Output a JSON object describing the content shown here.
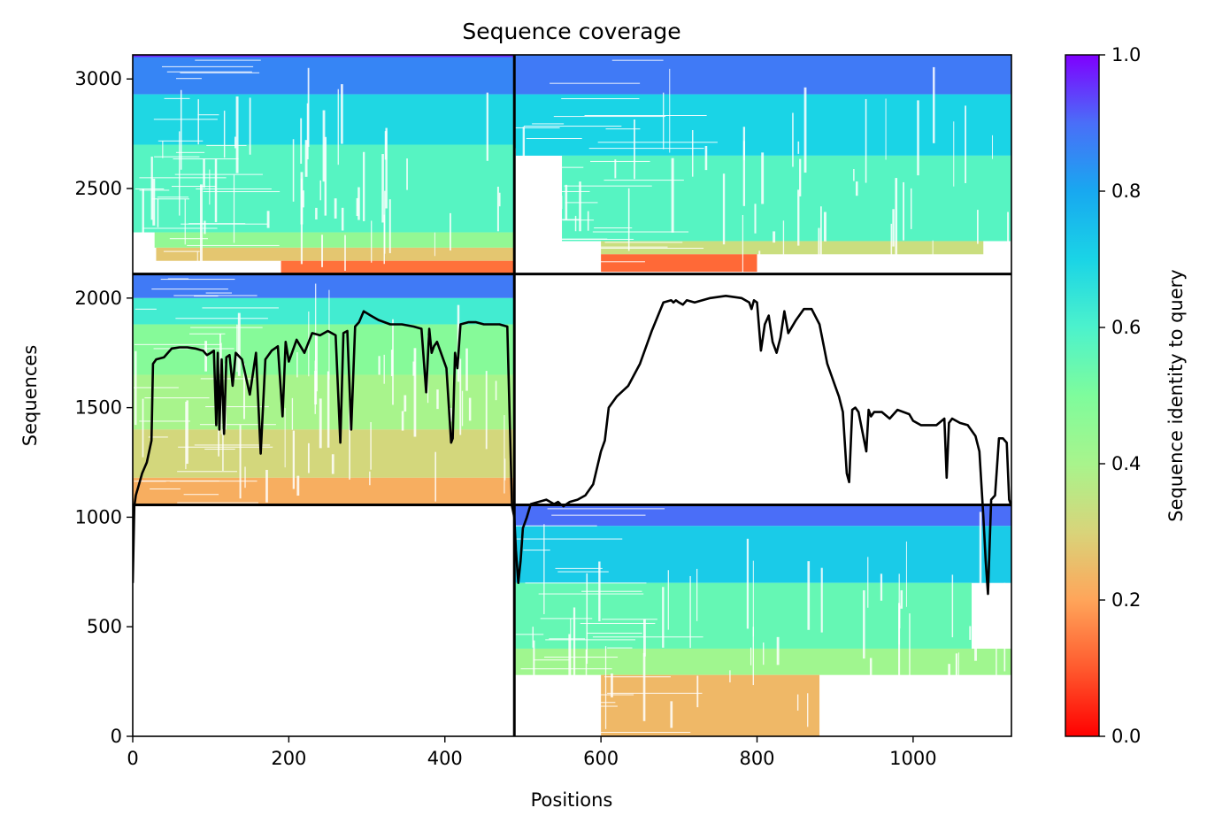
{
  "chart_data": {
    "type": "heatmap",
    "title": "Sequence coverage",
    "xlabel": "Positions",
    "ylabel": "Sequences",
    "xlim": [
      0,
      1126
    ],
    "ylim": [
      0,
      3110
    ],
    "xticks": [
      0,
      200,
      400,
      600,
      800,
      1000
    ],
    "yticks": [
      0,
      500,
      1000,
      1500,
      2000,
      2500,
      3000
    ],
    "grid": false,
    "colormap": "rainbow_r",
    "colorbar": {
      "label": "Sequence identity to query",
      "range": [
        0.0,
        1.0
      ],
      "ticks": [
        "0.0",
        "0.2",
        "0.4",
        "0.6",
        "0.8",
        "1.0"
      ]
    },
    "chain_boundaries": {
      "x": 489,
      "y": [
        1056,
        2110
      ]
    },
    "blocks": [
      {
        "name": "upper-left-block",
        "x_range": [
          0,
          489
        ],
        "y_range": [
          2110,
          3110
        ],
        "identity_bands": [
          {
            "y": [
              3100,
              3110
            ],
            "x": [
              0,
              489
            ],
            "identity": 0.97
          },
          {
            "y": [
              2930,
              3100
            ],
            "x": [
              0,
              489
            ],
            "identity": 0.86
          },
          {
            "y": [
              2700,
              2930
            ],
            "x": [
              0,
              489
            ],
            "identity": 0.69
          },
          {
            "y": [
              2300,
              2700
            ],
            "x": [
              0,
              489
            ],
            "identity": 0.58
          },
          {
            "y": [
              2230,
              2300
            ],
            "x": [
              28,
              489
            ],
            "identity": 0.45
          },
          {
            "y": [
              2170,
              2230
            ],
            "x": [
              30,
              489
            ],
            "identity": 0.27
          },
          {
            "y": [
              2110,
              2170
            ],
            "x": [
              190,
              489
            ],
            "identity": 0.13
          }
        ]
      },
      {
        "name": "upper-right-block",
        "x_range": [
          489,
          1126
        ],
        "y_range": [
          2110,
          3110
        ],
        "identity_bands": [
          {
            "y": [
              2930,
              3110
            ],
            "x": [
              489,
              1126
            ],
            "identity": 0.88
          },
          {
            "y": [
              2650,
              2930
            ],
            "x": [
              489,
              1126
            ],
            "identity": 0.7
          },
          {
            "y": [
              2260,
              2650
            ],
            "x": [
              550,
              1126
            ],
            "identity": 0.58
          },
          {
            "y": [
              2200,
              2260
            ],
            "x": [
              600,
              1090
            ],
            "identity": 0.33
          },
          {
            "y": [
              2120,
              2200
            ],
            "x": [
              600,
              800
            ],
            "identity": 0.12
          }
        ]
      },
      {
        "name": "middle-left-block",
        "x_range": [
          0,
          489
        ],
        "y_range": [
          1056,
          2110
        ],
        "identity_bands": [
          {
            "y": [
              2000,
              2110
            ],
            "x": [
              0,
              489
            ],
            "identity": 0.88
          },
          {
            "y": [
              1880,
              2000
            ],
            "x": [
              0,
              489
            ],
            "identity": 0.62
          },
          {
            "y": [
              1650,
              1880
            ],
            "x": [
              0,
              489
            ],
            "identity": 0.48
          },
          {
            "y": [
              1400,
              1650
            ],
            "x": [
              0,
              489
            ],
            "identity": 0.4
          },
          {
            "y": [
              1180,
              1400
            ],
            "x": [
              0,
              489
            ],
            "identity": 0.31
          },
          {
            "y": [
              1056,
              1180
            ],
            "x": [
              0,
              489
            ],
            "identity": 0.22
          }
        ]
      },
      {
        "name": "lower-right-block",
        "x_range": [
          489,
          1126
        ],
        "y_range": [
          0,
          1056
        ],
        "identity_bands": [
          {
            "y": [
              960,
              1056
            ],
            "x": [
              489,
              1126
            ],
            "identity": 0.9
          },
          {
            "y": [
              700,
              960
            ],
            "x": [
              489,
              1126
            ],
            "identity": 0.72
          },
          {
            "y": [
              400,
              700
            ],
            "x": [
              489,
              1075
            ],
            "identity": 0.55
          },
          {
            "y": [
              280,
              400
            ],
            "x": [
              489,
              1126
            ],
            "identity": 0.42
          },
          {
            "y": [
              0,
              280
            ],
            "x": [
              600,
              880
            ],
            "identity": 0.24
          }
        ]
      }
    ],
    "coverage_line": {
      "name": "coverage",
      "color": "#000000",
      "x": [
        0,
        2,
        4,
        8,
        12,
        18,
        24,
        26,
        30,
        40,
        50,
        60,
        70,
        80,
        90,
        95,
        100,
        104,
        107,
        109,
        111,
        114,
        117,
        120,
        124,
        128,
        132,
        140,
        150,
        158,
        164,
        170,
        178,
        186,
        192,
        196,
        200,
        210,
        220,
        230,
        240,
        250,
        260,
        266,
        270,
        275,
        280,
        285,
        290,
        296,
        305,
        315,
        330,
        345,
        360,
        370,
        376,
        380,
        383,
        386,
        390,
        396,
        402,
        408,
        410,
        413,
        416,
        420,
        430,
        440,
        450,
        460,
        470,
        480,
        486,
        489,
        491,
        494,
        497,
        500,
        505,
        510,
        520,
        530,
        540,
        545,
        548,
        552,
        556,
        560,
        570,
        580,
        590,
        600,
        605,
        610,
        620,
        635,
        650,
        665,
        680,
        690,
        693,
        696,
        700,
        705,
        710,
        720,
        740,
        760,
        780,
        790,
        793,
        796,
        800,
        805,
        810,
        815,
        820,
        825,
        830,
        835,
        840,
        850,
        860,
        870,
        880,
        890,
        895,
        900,
        905,
        910,
        915,
        918,
        922,
        926,
        930,
        940,
        943,
        946,
        950,
        960,
        970,
        980,
        995,
        1000,
        1010,
        1030,
        1040,
        1043,
        1046,
        1050,
        1060,
        1070,
        1080,
        1085,
        1090,
        1093,
        1096,
        1100,
        1105,
        1110,
        1115,
        1120,
        1123,
        1126
      ],
      "y": [
        700,
        1050,
        1100,
        1150,
        1200,
        1250,
        1350,
        1700,
        1720,
        1730,
        1770,
        1775,
        1775,
        1770,
        1760,
        1740,
        1750,
        1760,
        1420,
        1750,
        1400,
        1720,
        1380,
        1730,
        1740,
        1600,
        1750,
        1720,
        1560,
        1750,
        1290,
        1720,
        1760,
        1780,
        1460,
        1800,
        1710,
        1810,
        1750,
        1840,
        1830,
        1850,
        1830,
        1340,
        1840,
        1850,
        1400,
        1870,
        1890,
        1940,
        1920,
        1900,
        1880,
        1880,
        1870,
        1860,
        1570,
        1860,
        1750,
        1780,
        1800,
        1740,
        1680,
        1340,
        1360,
        1750,
        1680,
        1880,
        1890,
        1890,
        1880,
        1880,
        1880,
        1870,
        1050,
        1000,
        850,
        700,
        800,
        950,
        1000,
        1060,
        1070,
        1080,
        1060,
        1070,
        1060,
        1050,
        1060,
        1070,
        1080,
        1100,
        1150,
        1300,
        1350,
        1500,
        1550,
        1600,
        1700,
        1850,
        1980,
        1990,
        1980,
        1990,
        1980,
        1970,
        1990,
        1980,
        2000,
        2010,
        2000,
        1980,
        1950,
        1990,
        1980,
        1760,
        1880,
        1920,
        1800,
        1750,
        1820,
        1940,
        1840,
        1900,
        1950,
        1950,
        1880,
        1700,
        1650,
        1600,
        1550,
        1480,
        1200,
        1160,
        1490,
        1500,
        1480,
        1300,
        1490,
        1460,
        1480,
        1480,
        1450,
        1490,
        1470,
        1440,
        1420,
        1420,
        1450,
        1180,
        1430,
        1450,
        1430,
        1420,
        1370,
        1300,
        1000,
        800,
        650,
        1080,
        1100,
        1360,
        1360,
        1340,
        1080,
        1050
      ]
    }
  }
}
